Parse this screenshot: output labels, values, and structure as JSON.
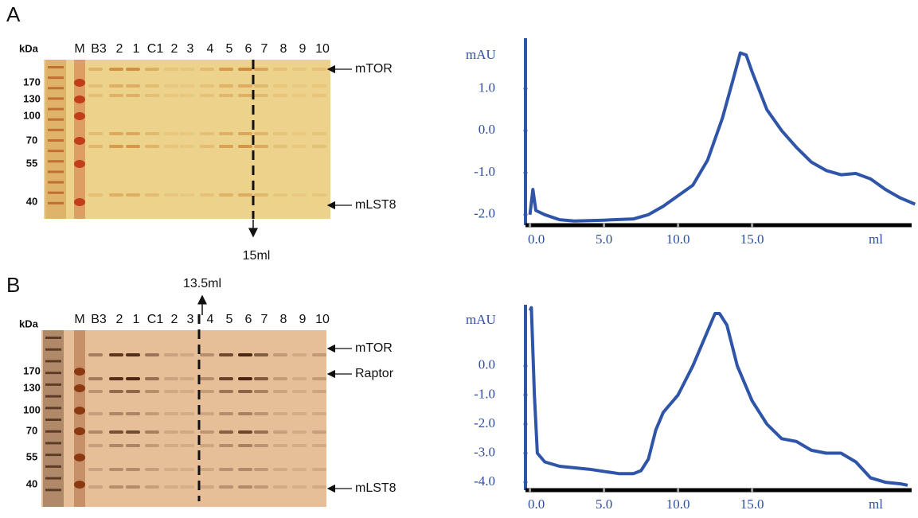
{
  "panels": [
    {
      "label": "A",
      "unit": "kDa",
      "lanes": [
        "M",
        "B3",
        "2",
        "1",
        "C1",
        "2",
        "3",
        "4",
        "5",
        "6",
        "7",
        "8",
        "9",
        "10"
      ],
      "markers": [
        170,
        130,
        100,
        70,
        55,
        40
      ],
      "bands": [
        "mTOR",
        "mLST8"
      ],
      "annotation": "15ml"
    },
    {
      "label": "B",
      "unit": "kDa",
      "lanes": [
        "M",
        "B3",
        "2",
        "1",
        "C1",
        "2",
        "3",
        "4",
        "5",
        "6",
        "7",
        "8",
        "9",
        "10"
      ],
      "markers": [
        170,
        130,
        100,
        70,
        55,
        40
      ],
      "bands": [
        "mTOR",
        "Raptor",
        "mLST8"
      ],
      "annotation": "13.5ml"
    }
  ],
  "chart_data": [
    {
      "type": "line",
      "y_label": "mAU",
      "x_label": "ml",
      "color": "#2f55a8",
      "x": [
        0,
        0.2,
        0.4,
        1,
        2,
        3,
        5,
        7,
        8,
        9,
        10,
        11,
        12,
        13,
        13.7,
        14.2,
        14.6,
        15,
        16,
        17,
        18,
        19,
        20,
        21,
        22,
        23,
        24,
        25,
        26
      ],
      "values": [
        -2.0,
        -1.4,
        -1.9,
        -2.0,
        -2.12,
        -2.15,
        -2.13,
        -2.1,
        -2.0,
        -1.8,
        -1.55,
        -1.3,
        -0.7,
        0.3,
        1.2,
        1.85,
        1.8,
        1.4,
        0.5,
        0.0,
        -0.4,
        -0.75,
        -0.95,
        -1.05,
        -1.02,
        -1.15,
        -1.4,
        -1.6,
        -1.75
      ],
      "xlim": [
        -0.3,
        26.2
      ],
      "ylim": [
        -2.25,
        2.2
      ],
      "xticks": [
        {
          "value": 0,
          "label": "0.0"
        },
        {
          "value": 5,
          "label": "5.0"
        },
        {
          "value": 10,
          "label": "10.0"
        },
        {
          "value": 15,
          "label": "15.0"
        }
      ],
      "yticks": [
        {
          "value": 1,
          "label": "1.0"
        },
        {
          "value": 0,
          "label": "0.0"
        },
        {
          "value": -1,
          "label": "-1.0"
        },
        {
          "value": -2,
          "label": "-2.0"
        }
      ]
    },
    {
      "type": "line",
      "y_label": "mAU",
      "x_label": "ml",
      "color": "#2f55a8",
      "x": [
        0,
        0.1,
        0.3,
        0.5,
        1,
        2,
        4,
        6,
        7,
        7.5,
        8,
        8.5,
        9,
        10,
        11,
        12,
        12.5,
        12.8,
        13.3,
        14,
        15,
        16,
        17,
        18,
        19,
        20,
        21,
        22,
        23,
        24,
        25,
        25.5
      ],
      "values": [
        1.9,
        2.0,
        -1.0,
        -3.0,
        -3.3,
        -3.45,
        -3.55,
        -3.7,
        -3.7,
        -3.6,
        -3.2,
        -2.2,
        -1.6,
        -1.0,
        0.0,
        1.2,
        1.8,
        1.8,
        1.4,
        0.0,
        -1.2,
        -2.0,
        -2.5,
        -2.6,
        -2.9,
        -3.0,
        -3.0,
        -3.3,
        -3.85,
        -4.0,
        -4.05,
        -4.1
      ],
      "xlim": [
        -0.3,
        26.2
      ],
      "ylim": [
        -4.27,
        2.1
      ],
      "xticks": [
        {
          "value": 0,
          "label": "0.0"
        },
        {
          "value": 5,
          "label": "5.0"
        },
        {
          "value": 10,
          "label": "10.0"
        },
        {
          "value": 15,
          "label": "15.0"
        }
      ],
      "yticks": [
        {
          "value": 0,
          "label": "0.0"
        },
        {
          "value": -1,
          "label": "-1.0"
        },
        {
          "value": -2,
          "label": "-2.0"
        },
        {
          "value": -3,
          "label": "-3.0"
        },
        {
          "value": -4,
          "label": "-4.0"
        }
      ]
    }
  ]
}
